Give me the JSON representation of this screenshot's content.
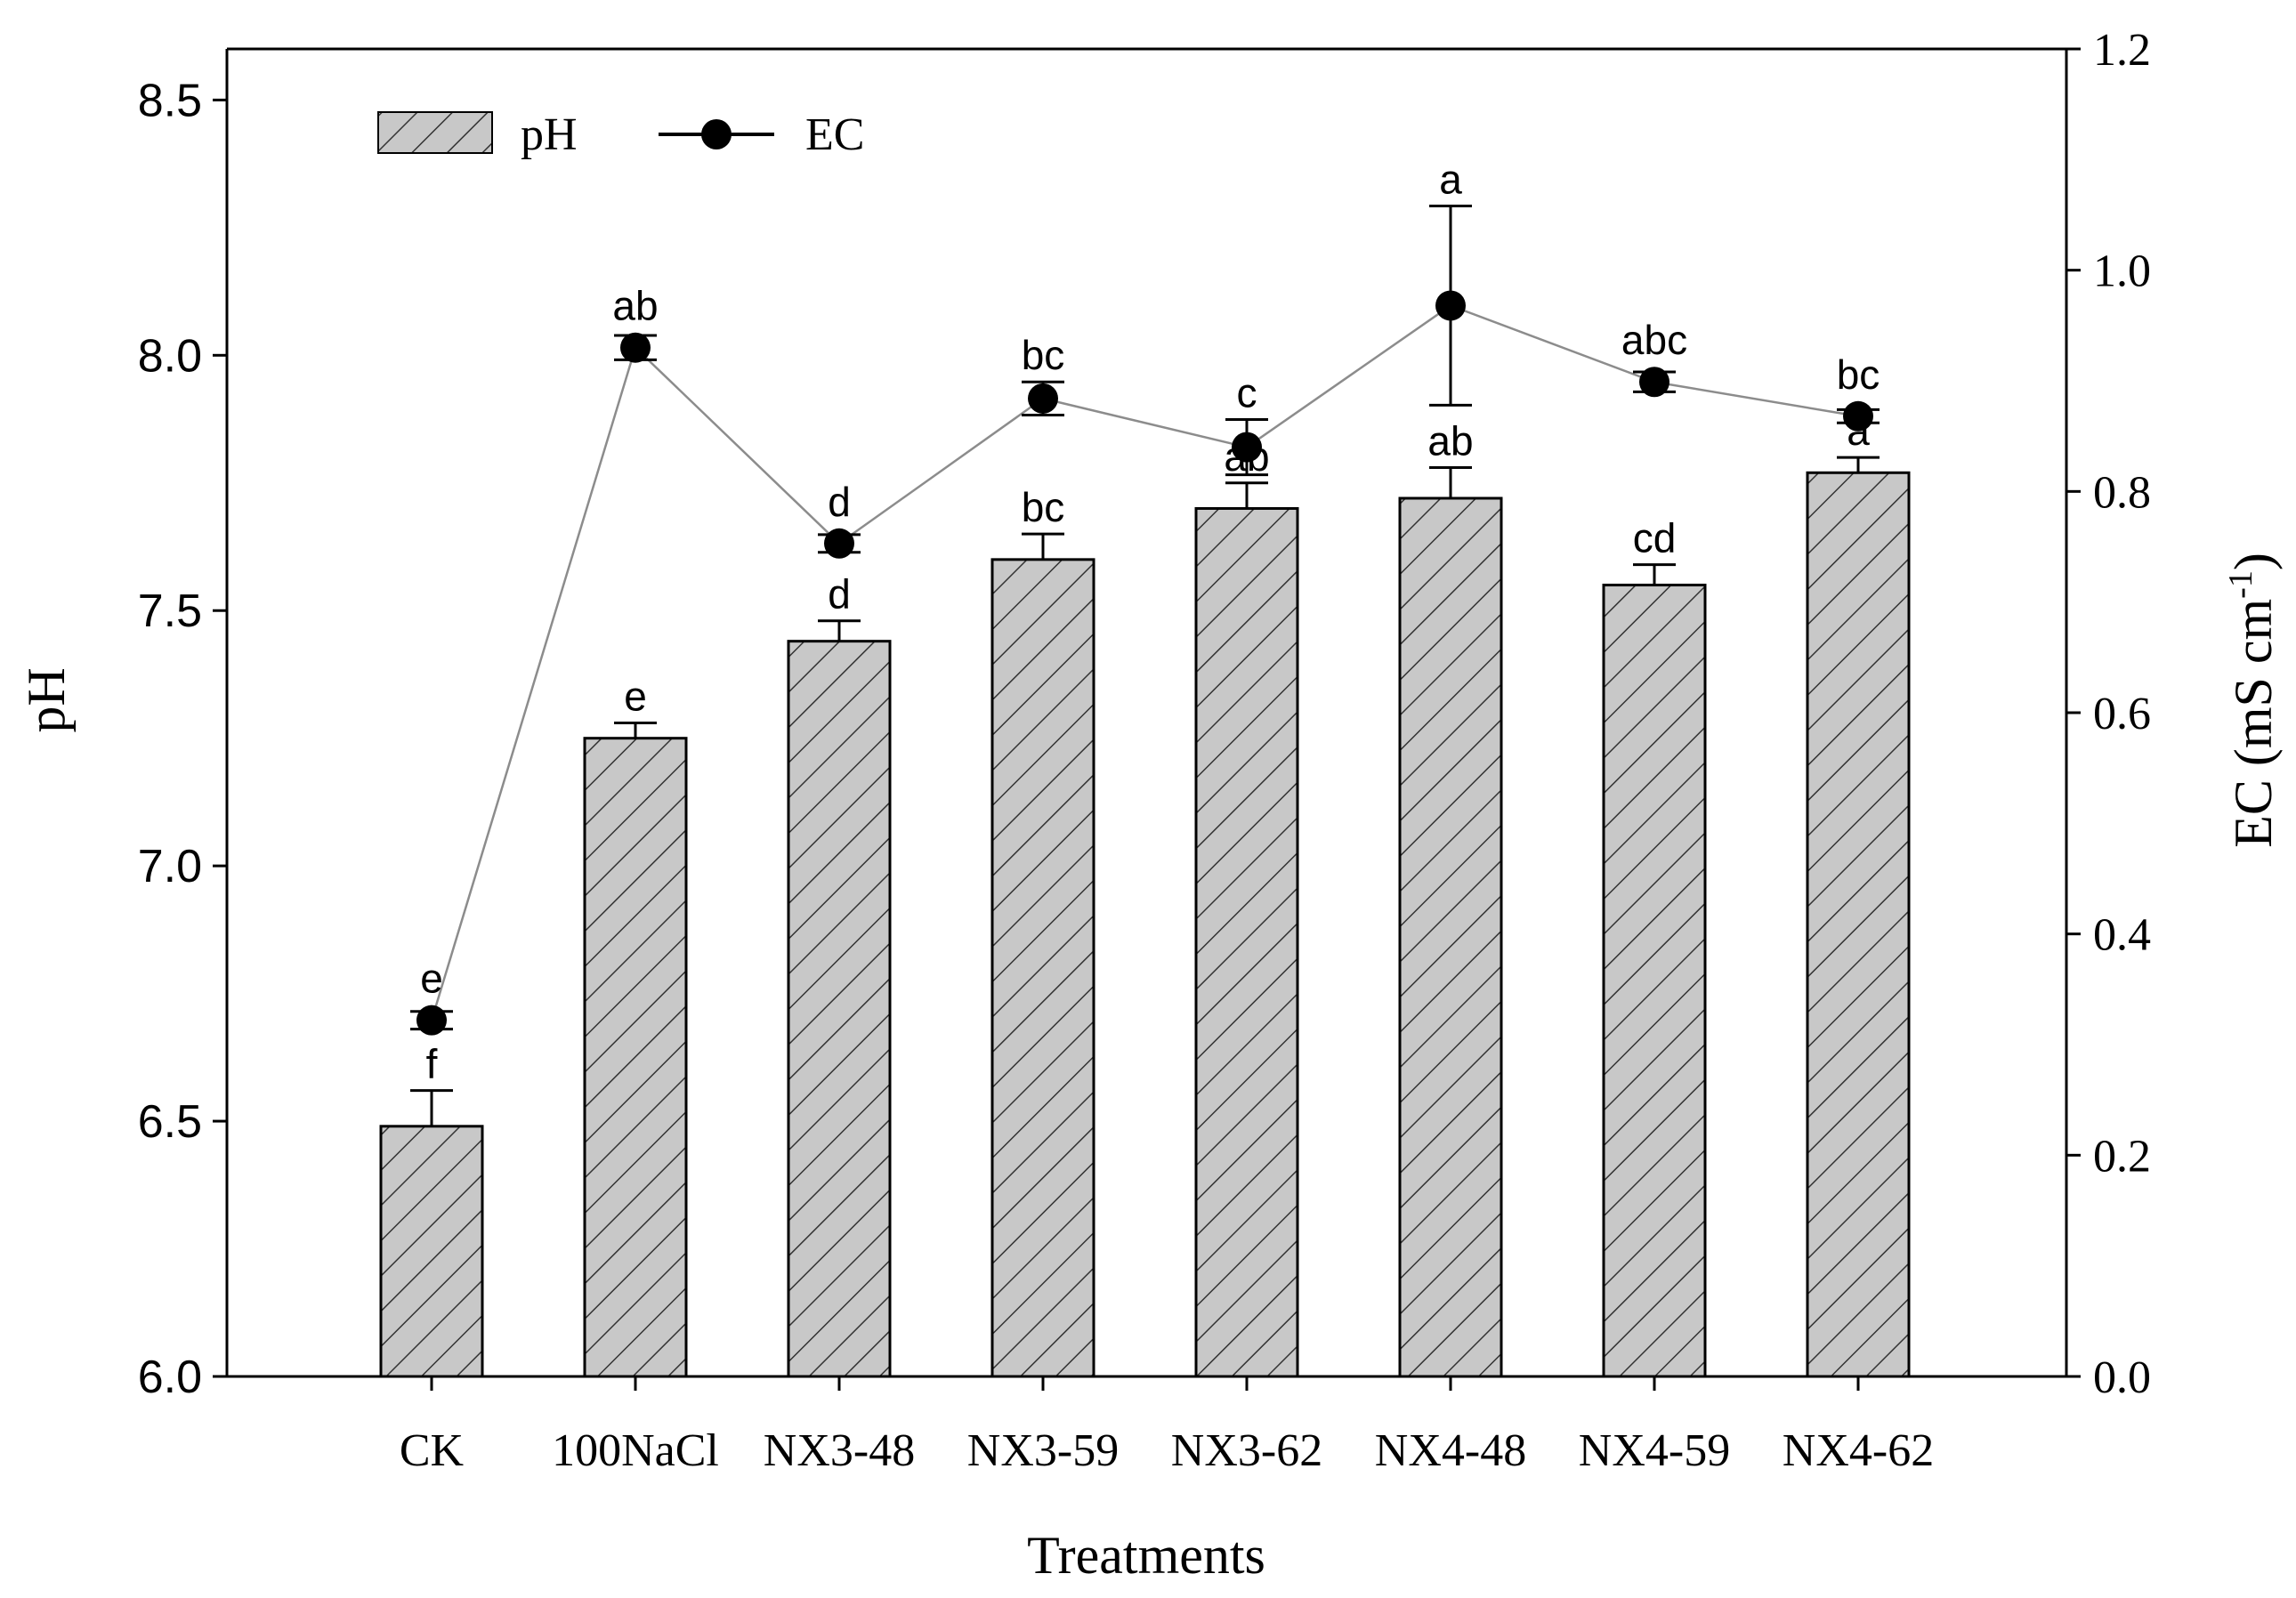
{
  "chart_data": {
    "type": "bar",
    "xlabel": "Treatments",
    "ylabel_left": "pH",
    "ylabel_right_main": "EC (mS cm",
    "ylabel_right_sup": "-1",
    "ylabel_right_close": ")",
    "categories": [
      "CK",
      "100NaCl",
      "NX3-48",
      "NX3-59",
      "NX3-62",
      "NX4-48",
      "NX4-59",
      "NX4-62"
    ],
    "left_axis": {
      "range": [
        6.0,
        8.6
      ],
      "ticks": [
        "6.0",
        "6.5",
        "7.0",
        "7.5",
        "8.0",
        "8.5"
      ],
      "tick_values": [
        6.0,
        6.5,
        7.0,
        7.5,
        8.0,
        8.5
      ]
    },
    "right_axis": {
      "range": [
        0.0,
        1.2
      ],
      "ticks": [
        "0.0",
        "0.2",
        "0.4",
        "0.6",
        "0.8",
        "1.0",
        "1.2"
      ],
      "tick_values": [
        0.0,
        0.2,
        0.4,
        0.6,
        0.8,
        1.0,
        1.2
      ]
    },
    "legend": {
      "placement": "top-left",
      "items": [
        "pH",
        "EC"
      ]
    },
    "grid": false,
    "series": [
      {
        "name": "pH",
        "type": "bar",
        "axis": "left",
        "pattern": "diagonal-hatch",
        "fill": "#c8c8c8",
        "values": [
          6.49,
          7.25,
          7.44,
          7.6,
          7.7,
          7.72,
          7.55,
          7.77
        ],
        "error": [
          0.07,
          0.03,
          0.04,
          0.05,
          0.05,
          0.06,
          0.04,
          0.03
        ],
        "letters": [
          "f",
          "e",
          "d",
          "bc",
          "ab",
          "ab",
          "cd",
          "a"
        ]
      },
      {
        "name": "EC",
        "type": "line",
        "axis": "right",
        "marker": "circle",
        "color": "#000000",
        "line_color": "#8c8c8c",
        "values": [
          0.322,
          0.93,
          0.753,
          0.884,
          0.84,
          0.968,
          0.899,
          0.868
        ],
        "error": [
          0.008,
          0.011,
          0.008,
          0.015,
          0.025,
          0.09,
          0.009,
          0.006
        ],
        "letters": [
          "e",
          "ab",
          "d",
          "bc",
          "c",
          "a",
          "abc",
          "bc"
        ]
      }
    ]
  }
}
